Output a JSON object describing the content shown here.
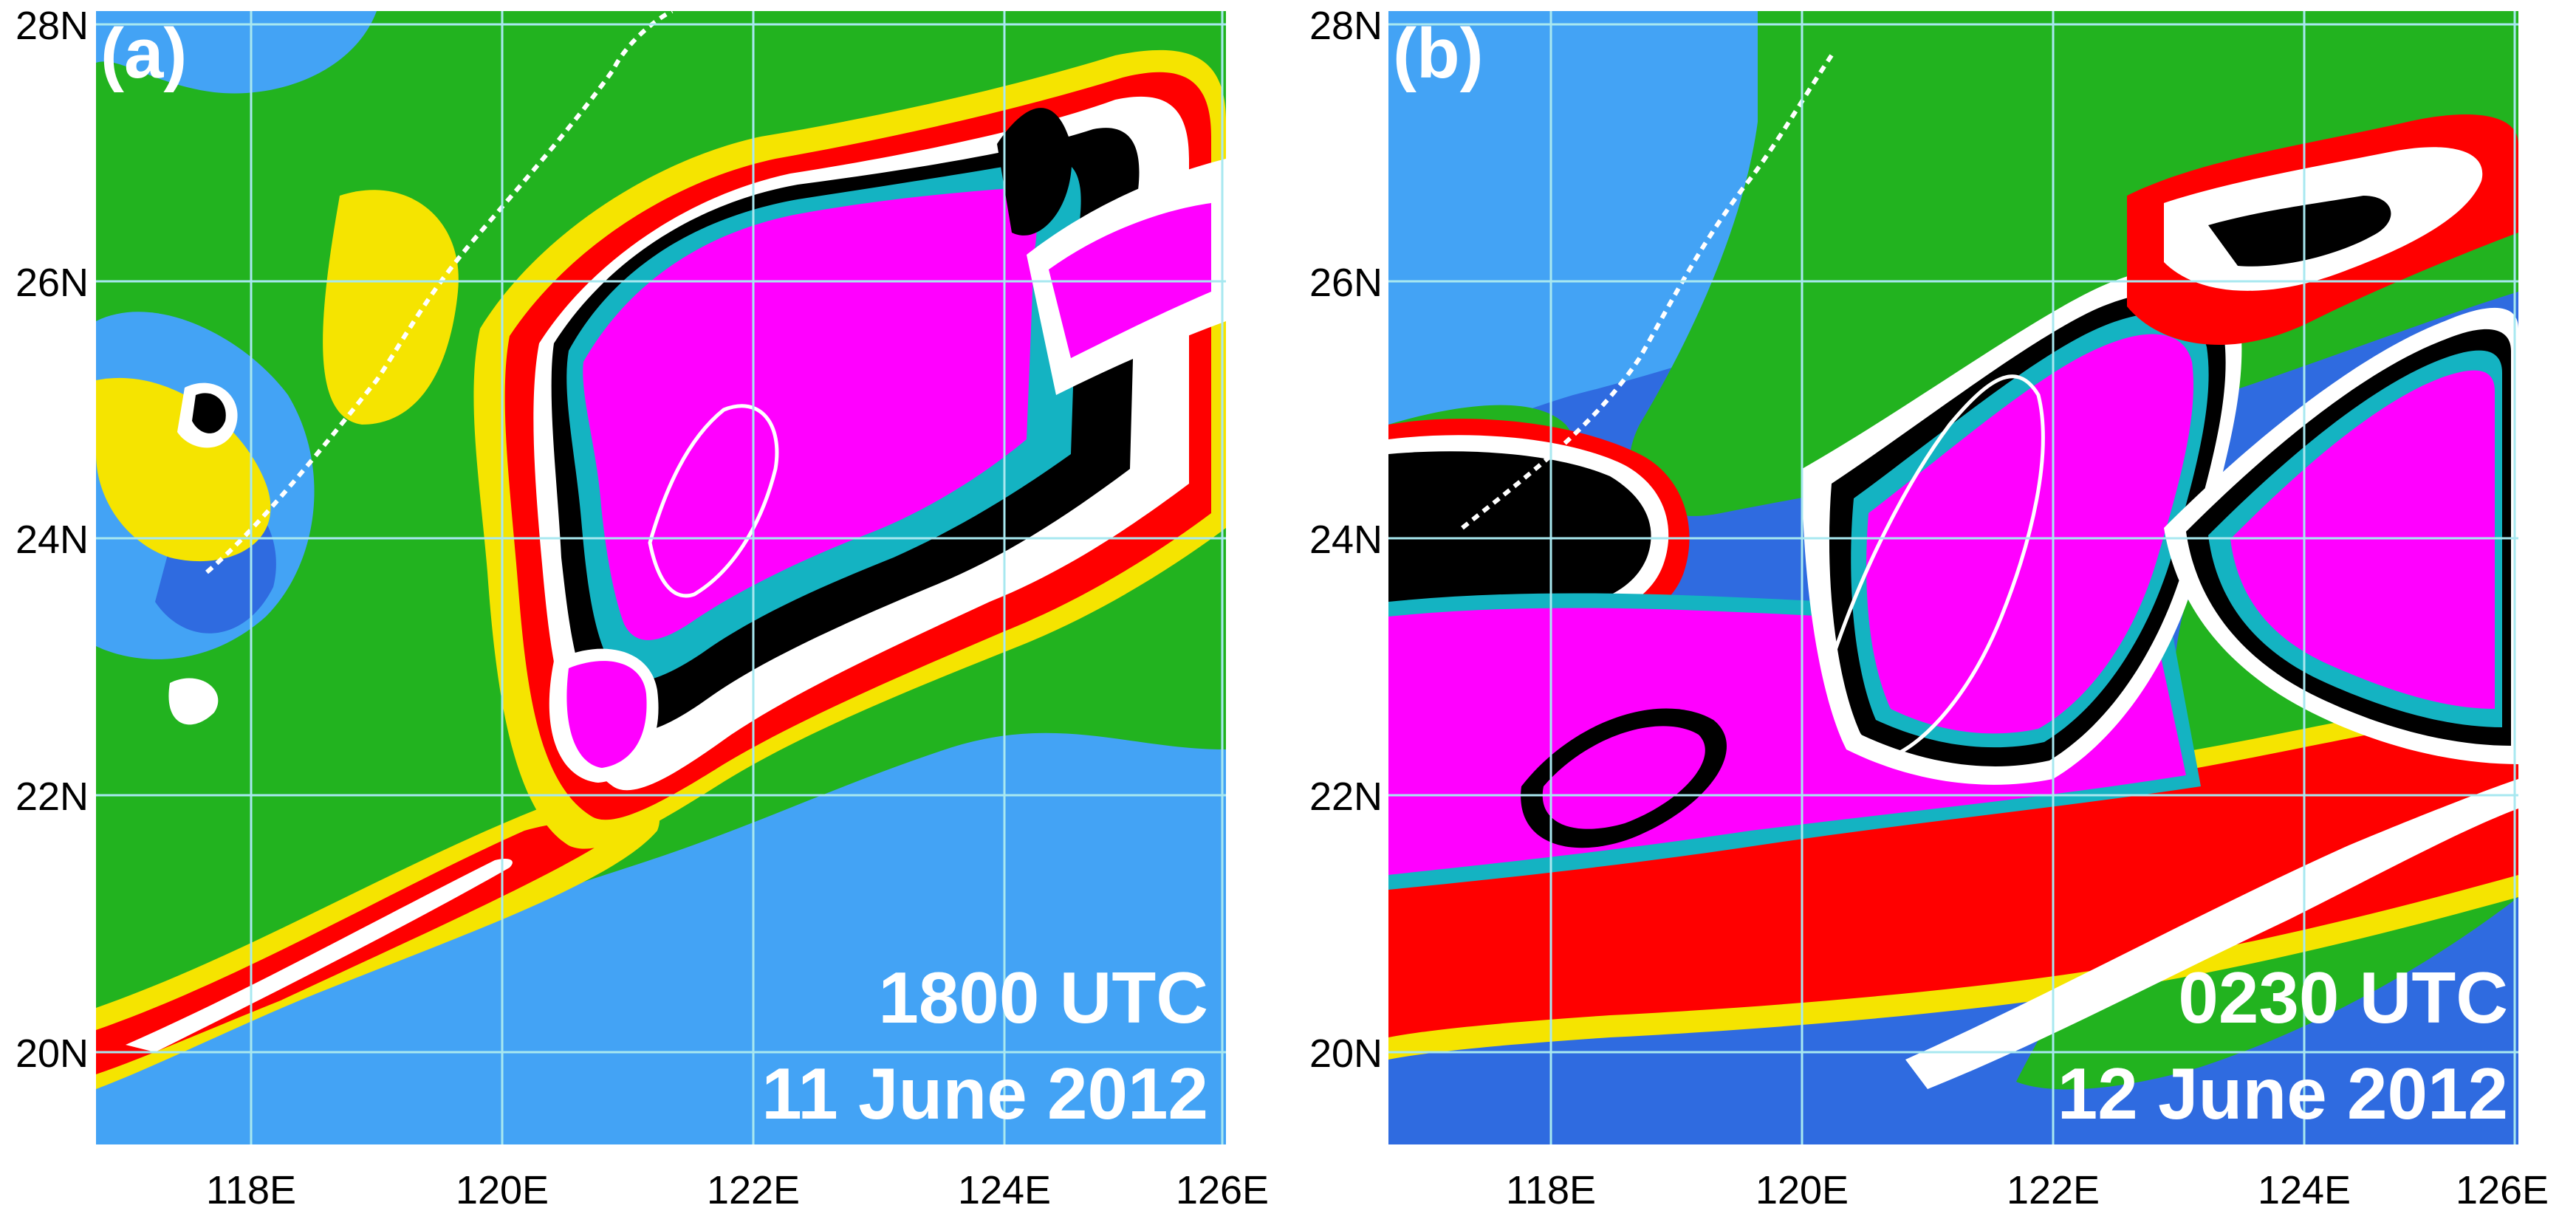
{
  "colors": {
    "ocean_clear": "#2f6be0",
    "low_cloud": "#43a3f5",
    "green": "#22b31f",
    "yellow": "#f5e400",
    "orange": "#e6b400",
    "red": "#ff0000",
    "white": "#ffffff",
    "black": "#000000",
    "cyan": "#14b3c2",
    "magenta": "#ff00ff",
    "grid": "#a8e8f0"
  },
  "axes": {
    "lat_labels": [
      "28N",
      "26N",
      "24N",
      "22N",
      "20N"
    ],
    "lon_labels": [
      "118E",
      "120E",
      "122E",
      "124E",
      "126E"
    ]
  },
  "panels": [
    {
      "label": "(a)",
      "time": "1800 UTC",
      "date": "11 June 2012"
    },
    {
      "label": "(b)",
      "time": "0230 UTC",
      "date": "12 June 2012"
    }
  ]
}
